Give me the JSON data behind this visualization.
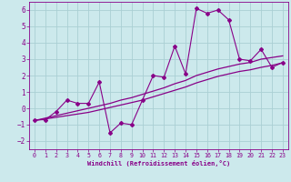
{
  "x": [
    0,
    1,
    2,
    3,
    4,
    5,
    6,
    7,
    8,
    9,
    10,
    11,
    12,
    13,
    14,
    15,
    16,
    17,
    18,
    19,
    20,
    21,
    22,
    23
  ],
  "y_main": [
    -0.7,
    -0.7,
    -0.2,
    0.5,
    0.3,
    0.3,
    1.6,
    -1.5,
    -0.9,
    -1.0,
    0.5,
    2.0,
    1.9,
    3.8,
    2.1,
    6.1,
    5.8,
    6.0,
    5.4,
    3.0,
    2.9,
    3.6,
    2.5,
    2.8
  ],
  "y_trend1": [
    -0.75,
    -0.65,
    -0.55,
    -0.45,
    -0.35,
    -0.25,
    -0.1,
    0.05,
    0.2,
    0.35,
    0.5,
    0.7,
    0.9,
    1.1,
    1.3,
    1.55,
    1.75,
    1.95,
    2.1,
    2.25,
    2.35,
    2.5,
    2.62,
    2.78
  ],
  "y_trend2": [
    -0.75,
    -0.6,
    -0.45,
    -0.3,
    -0.15,
    0.0,
    0.15,
    0.3,
    0.5,
    0.65,
    0.85,
    1.05,
    1.25,
    1.5,
    1.7,
    2.0,
    2.2,
    2.4,
    2.55,
    2.7,
    2.8,
    3.0,
    3.1,
    3.2
  ],
  "bg_color": "#cce9ec",
  "grid_color": "#aacfd4",
  "line_color": "#880088",
  "xlabel": "Windchill (Refroidissement éolien,°C)",
  "ylim": [
    -2.5,
    6.5
  ],
  "xlim": [
    -0.5,
    23.5
  ],
  "yticks": [
    -2,
    -1,
    0,
    1,
    2,
    3,
    4,
    5,
    6
  ],
  "xticks": [
    0,
    1,
    2,
    3,
    4,
    5,
    6,
    7,
    8,
    9,
    10,
    11,
    12,
    13,
    14,
    15,
    16,
    17,
    18,
    19,
    20,
    21,
    22,
    23
  ]
}
